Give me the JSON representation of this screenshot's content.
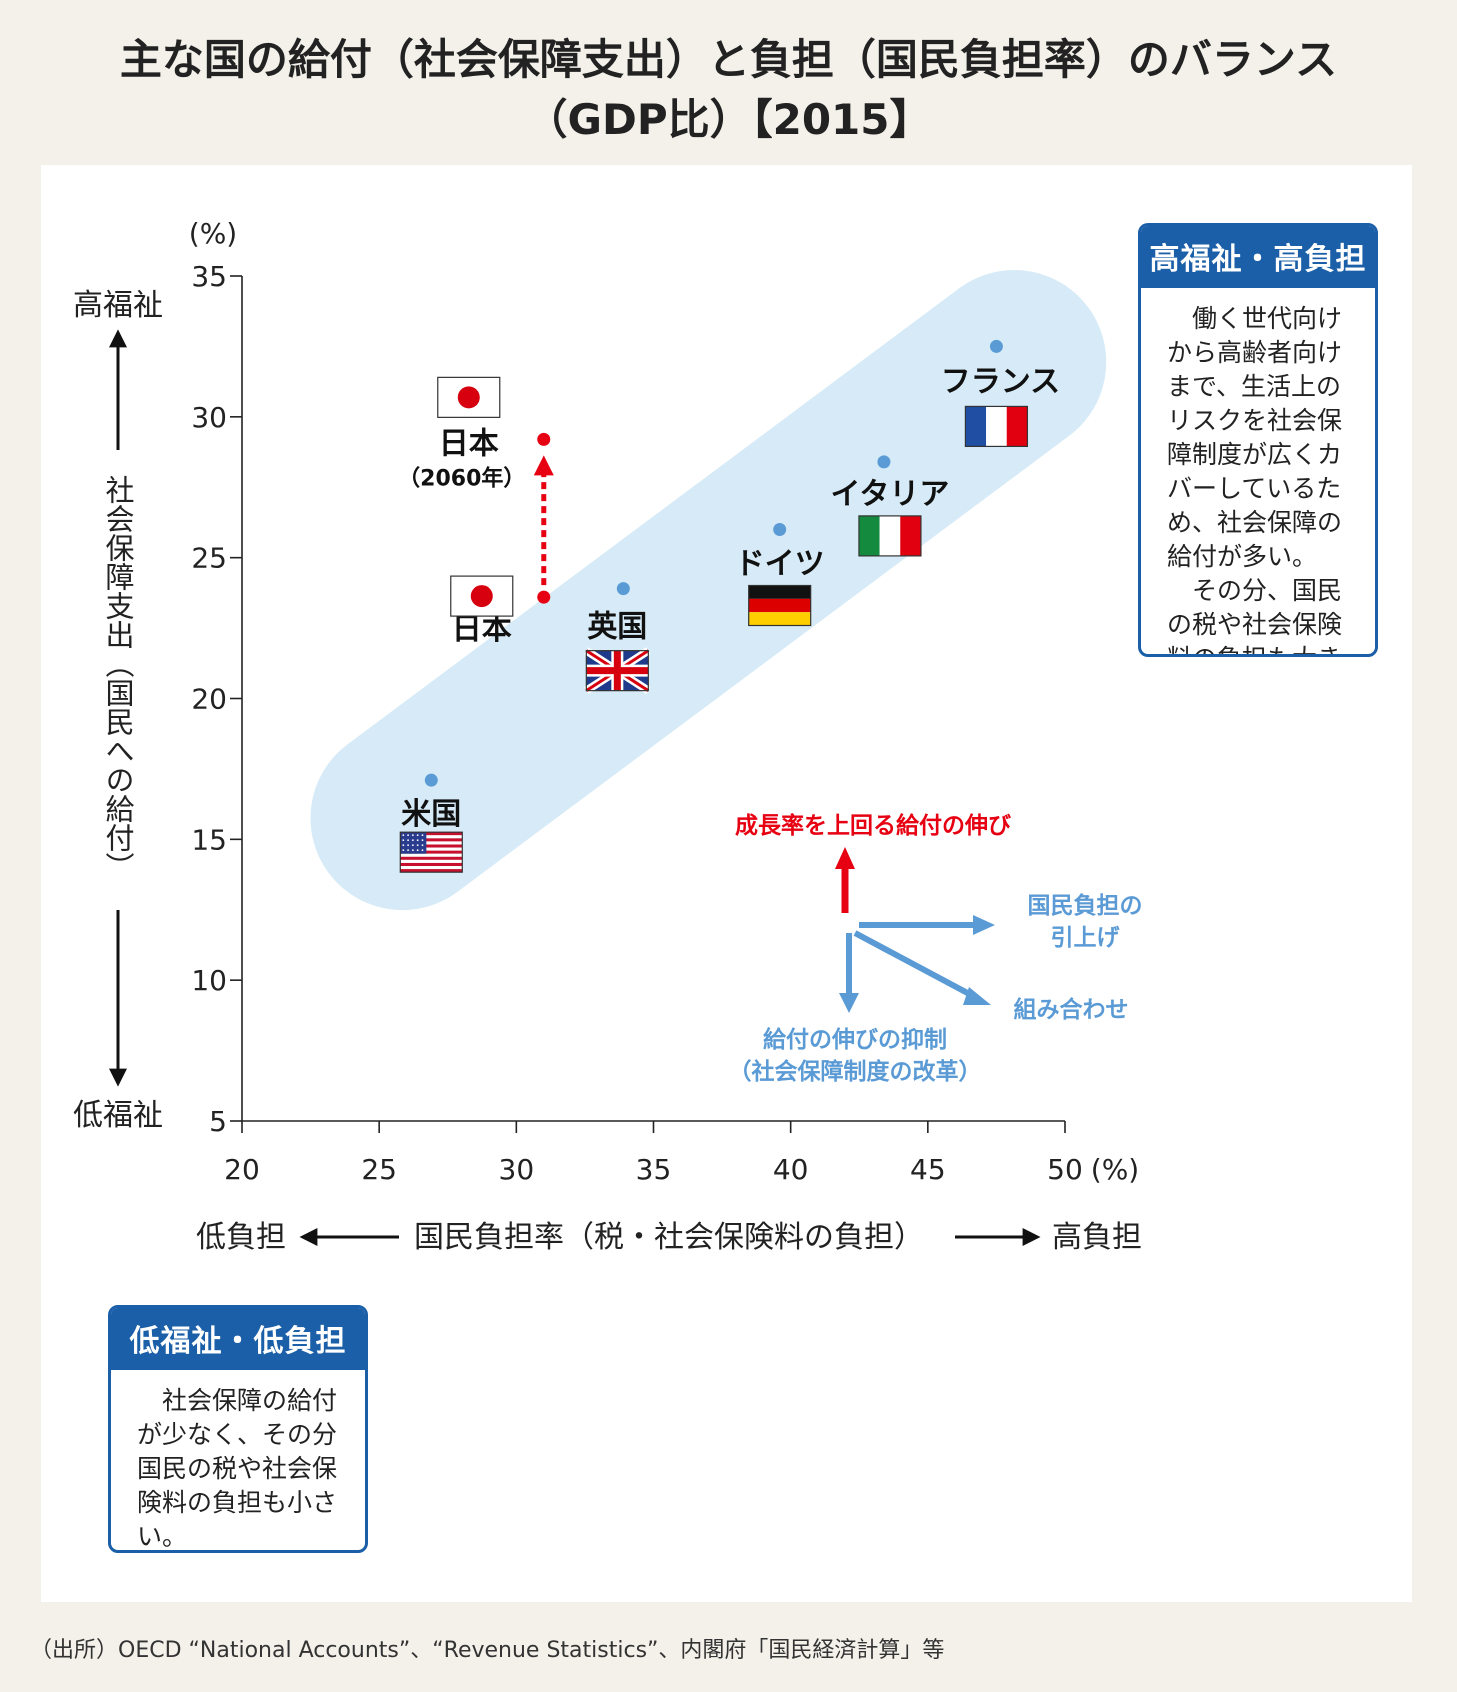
{
  "title": {
    "line1": "主な国の給付（社会保障支出）と負担（国民負担率）のバランス",
    "line2": "（GDP比）【2015】"
  },
  "chart_data": {
    "type": "scatter",
    "x_unit": "(%)",
    "y_unit": "(%)",
    "xlim": [
      20,
      50
    ],
    "ylim": [
      5,
      35
    ],
    "x_ticks": [
      20,
      25,
      30,
      35,
      40,
      45,
      50
    ],
    "y_ticks": [
      5,
      10,
      15,
      20,
      25,
      30,
      35
    ],
    "xlabel": "国民負担率（税・社会保険料の負担）",
    "xlabel_left": "低負担",
    "xlabel_right": "高負担",
    "ylabel": "社会保障支出（国民への給付）",
    "ylabel_top": "高福祉",
    "ylabel_bottom": "低福祉",
    "points": [
      {
        "label": "米国",
        "x": 26.9,
        "y": 17.1,
        "flag": "usa"
      },
      {
        "label": "日本",
        "x": 31.0,
        "y": 23.6,
        "flag": "japan"
      },
      {
        "label": "英国",
        "x": 33.9,
        "y": 23.9,
        "flag": "uk"
      },
      {
        "label": "ドイツ",
        "x": 39.6,
        "y": 26.0,
        "flag": "germany"
      },
      {
        "label": "イタリア",
        "x": 43.4,
        "y": 28.4,
        "flag": "italy"
      },
      {
        "label": "フランス",
        "x": 47.5,
        "y": 32.5,
        "flag": "france"
      }
    ],
    "japan_2060": {
      "label": "日本",
      "sublabel": "（2060年）",
      "x": 31.0,
      "y": 29.2,
      "flag": "japan"
    },
    "colors": {
      "points": "#5b9bd5",
      "ellipse": "#d6ebf7",
      "japan_arrow": "#e60012",
      "policy_blue": "#5b9bd5",
      "policy_red": "#e60012"
    },
    "policy_diagram": {
      "up": "成長率を上回る給付の伸び",
      "right_line1": "国民負担の",
      "right_line2": "引上げ",
      "diagonal": "組み合わせ",
      "down_line1": "給付の伸びの抑制",
      "down_line2": "（社会保障制度の改革）"
    }
  },
  "box_high": {
    "heading": "高福祉・高負担",
    "para1": "働く世代向けから高齢者向けまで、生活上のリスクを社会保障制度が広くカバーしているため、社会保障の給付が多い。",
    "para2": "その分、国民の税や社会保険料の負担も大きい。"
  },
  "box_low": {
    "heading": "低福祉・低負担",
    "para1": "社会保障の給付が少なく、その分国民の税や社会保険料の負担も小さい。"
  },
  "source": "（出所）OECD “National Accounts”、“Revenue Statistics”、内閣府「国民経済計算」等"
}
